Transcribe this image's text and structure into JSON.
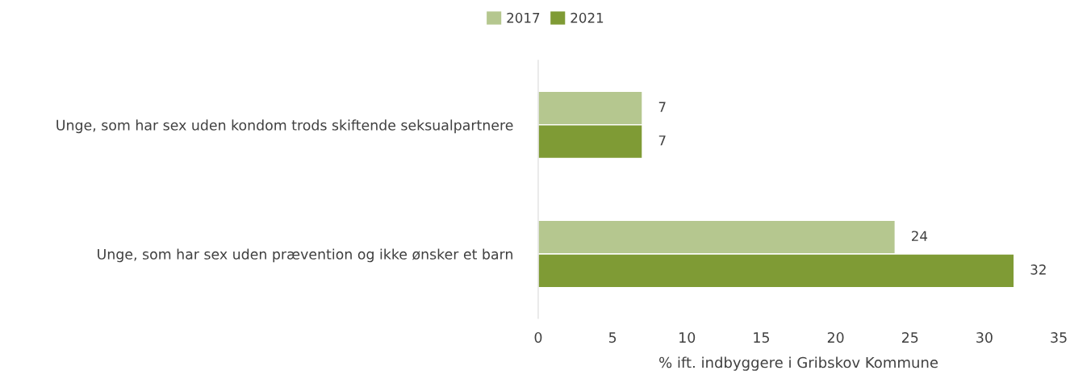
{
  "chart_data": {
    "type": "bar",
    "orientation": "horizontal",
    "xlabel": "% ift. indbyggere i Gribskov Kommune",
    "categories": [
      "Unge, som har sex uden kondom trods skiftende seksualpartnere",
      "Unge, som har sex uden prævention og ikke ønsker et barn"
    ],
    "series": [
      {
        "name": "2017",
        "color": "#b5c78f",
        "values": [
          7,
          24
        ]
      },
      {
        "name": "2021",
        "color": "#7f9b35",
        "values": [
          7,
          32
        ]
      }
    ],
    "xlim": [
      0,
      35
    ],
    "xticks": [
      0,
      5,
      10,
      15,
      20,
      25,
      30,
      35
    ],
    "grid": false,
    "legend": "top",
    "data_labels": true
  }
}
